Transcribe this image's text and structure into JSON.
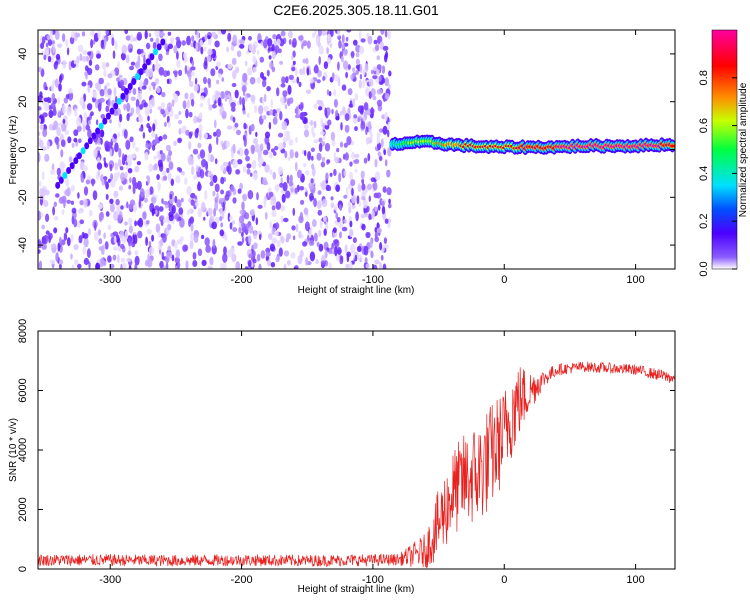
{
  "figure": {
    "title": "C2E6.2025.305.18.11.G01"
  },
  "chart_data": [
    {
      "type": "heatmap",
      "xlabel": "Height of straight line (km)",
      "ylabel": "Frequency (Hz)",
      "xlim": [
        -355,
        130
      ],
      "ylim": [
        -50,
        50
      ],
      "x_ticks": [
        -300,
        -200,
        -100,
        0,
        100
      ],
      "y_ticks": [
        -40,
        -20,
        0,
        20,
        40
      ],
      "colorbar": {
        "label": "Normalized spectral amplitude",
        "range": [
          0,
          1
        ],
        "ticks": [
          0.0,
          0.2,
          0.4,
          0.6,
          0.8
        ],
        "colors": [
          "#ffffff",
          "#8a5cff",
          "#4b00ff",
          "#0050ff",
          "#00e0ff",
          "#00ff40",
          "#c8ff00",
          "#ff8c00",
          "#ff0000",
          "#ff00a0"
        ]
      },
      "noise_region": {
        "x": [
          -355,
          -87
        ],
        "y": [
          -50,
          50
        ]
      },
      "drift_streak": {
        "x": [
          -340,
          -260
        ],
        "y": [
          -15,
          45
        ]
      },
      "signal_band": [
        {
          "x": -85,
          "y": 2,
          "amplitude": 0.35
        },
        {
          "x": -70,
          "y": 3,
          "amplitude": 0.55
        },
        {
          "x": -55,
          "y": 3,
          "amplitude": 0.6
        },
        {
          "x": -40,
          "y": 2,
          "amplitude": 0.7
        },
        {
          "x": -25,
          "y": 1.5,
          "amplitude": 0.75
        },
        {
          "x": -10,
          "y": 1,
          "amplitude": 0.8
        },
        {
          "x": 0,
          "y": 1,
          "amplitude": 0.8
        },
        {
          "x": 20,
          "y": 1,
          "amplitude": 0.85
        },
        {
          "x": 40,
          "y": 1,
          "amplitude": 0.85
        },
        {
          "x": 60,
          "y": 1.5,
          "amplitude": 0.9
        },
        {
          "x": 80,
          "y": 1.5,
          "amplitude": 0.9
        },
        {
          "x": 100,
          "y": 1.5,
          "amplitude": 0.9
        },
        {
          "x": 120,
          "y": 2,
          "amplitude": 0.85
        },
        {
          "x": 130,
          "y": 2,
          "amplitude": 0.85
        }
      ]
    },
    {
      "type": "line",
      "xlabel": "Height of straight line (km)",
      "ylabel": "SNR (10 * v/v)",
      "xlim": [
        -355,
        130
      ],
      "ylim": [
        0,
        8000
      ],
      "x_ticks": [
        -300,
        -200,
        -100,
        0,
        100
      ],
      "y_ticks": [
        0,
        2000,
        4000,
        6000,
        8000
      ],
      "line_color": "#e8201e",
      "series": [
        {
          "x": [
            -355,
            -300,
            -250,
            -200,
            -150,
            -100,
            -80,
            -60,
            -50,
            -40,
            -30,
            -20,
            -10,
            0,
            5,
            10,
            20,
            30,
            40,
            60,
            80,
            100,
            120,
            130
          ],
          "y": [
            300,
            300,
            280,
            300,
            280,
            300,
            320,
            600,
            1500,
            2500,
            3000,
            3200,
            3800,
            4500,
            5200,
            5600,
            6000,
            6400,
            6700,
            6800,
            6750,
            6700,
            6500,
            6400
          ],
          "noise_amplitude": [
            200,
            200,
            200,
            200,
            200,
            200,
            200,
            600,
            1200,
            1500,
            1600,
            1800,
            1800,
            1600,
            1600,
            1400,
            700,
            300,
            200,
            180,
            180,
            180,
            200,
            200
          ]
        }
      ]
    }
  ]
}
